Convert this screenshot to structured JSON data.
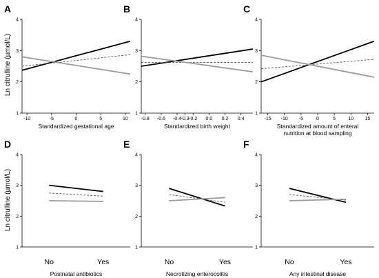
{
  "figure": {
    "ylabel": "Ln citrulline (µmol/L)",
    "series_colors": {
      "black": "#000000",
      "dashed": "#555555",
      "gray": "#999999"
    }
  },
  "chart_data": [
    {
      "panel": "A",
      "type": "line",
      "xlabel": "Standardized gestational age",
      "xlim": [
        -11,
        11
      ],
      "ylim": [
        1,
        4
      ],
      "xticks": [
        "-10",
        "-5",
        "0",
        "5",
        "10"
      ],
      "xtick_values": [
        -10,
        -5,
        0,
        5,
        10
      ],
      "yticks": [
        "1",
        "2",
        "3",
        "4"
      ],
      "ytick_values": [
        1,
        2,
        3,
        4
      ],
      "series": [
        {
          "style": "black",
          "x": [
            -11,
            11
          ],
          "y": [
            2.37,
            3.3
          ]
        },
        {
          "style": "dashed",
          "x": [
            -11,
            11
          ],
          "y": [
            2.5,
            2.87
          ]
        },
        {
          "style": "gray",
          "x": [
            -11,
            11
          ],
          "y": [
            2.8,
            2.25
          ]
        }
      ]
    },
    {
      "panel": "B",
      "type": "line",
      "xlabel": "Standardized birth weight",
      "xlim": [
        -0.85,
        0.55
      ],
      "ylim": [
        1,
        4
      ],
      "xticks": [
        "-0.8",
        "-0.6",
        "-0.4",
        "-0.3",
        "-0.2",
        "0.0",
        "0.2",
        "0.4"
      ],
      "xtick_values": [
        -0.8,
        -0.6,
        -0.4,
        -0.3,
        -0.2,
        0.0,
        0.2,
        0.4
      ],
      "yticks": [
        "1",
        "2",
        "3",
        "4"
      ],
      "ytick_values": [
        1,
        2,
        3,
        4
      ],
      "series": [
        {
          "style": "black",
          "x": [
            -0.85,
            0.55
          ],
          "y": [
            2.5,
            3.05
          ]
        },
        {
          "style": "dashed",
          "x": [
            -0.85,
            0.55
          ],
          "y": [
            2.62,
            2.62
          ]
        },
        {
          "style": "gray",
          "x": [
            -0.85,
            0.55
          ],
          "y": [
            2.82,
            2.32
          ]
        }
      ]
    },
    {
      "panel": "C",
      "type": "line",
      "xlabel_lines": [
        "Standardized amount of enteral",
        "nutrition at blood sampling"
      ],
      "xlim": [
        -17,
        17
      ],
      "ylim": [
        1,
        4
      ],
      "xticks": [
        "-15",
        "-10",
        "-5",
        "0",
        "5",
        "10",
        "15"
      ],
      "xtick_values": [
        -15,
        -10,
        -5,
        0,
        5,
        10,
        15
      ],
      "yticks": [
        "1",
        "2",
        "3",
        "4"
      ],
      "ytick_values": [
        1,
        2,
        3,
        4
      ],
      "series": [
        {
          "style": "black",
          "x": [
            -17,
            17
          ],
          "y": [
            2.0,
            3.3
          ]
        },
        {
          "style": "dashed",
          "x": [
            -17,
            17
          ],
          "y": [
            2.42,
            2.72
          ]
        },
        {
          "style": "gray",
          "x": [
            -17,
            17
          ],
          "y": [
            2.85,
            2.15
          ]
        }
      ]
    },
    {
      "panel": "D",
      "type": "line",
      "xlabel": "Postnatal antibiotics",
      "categories": [
        "No",
        "Yes"
      ],
      "ylim": [
        1,
        4
      ],
      "yticks": [
        "1",
        "2",
        "3",
        "4"
      ],
      "ytick_values": [
        1,
        2,
        3,
        4
      ],
      "series": [
        {
          "style": "black",
          "values": [
            3.0,
            2.8
          ]
        },
        {
          "style": "dashed",
          "values": [
            2.75,
            2.65
          ]
        },
        {
          "style": "gray",
          "values": [
            2.5,
            2.48
          ]
        }
      ]
    },
    {
      "panel": "E",
      "type": "line",
      "xlabel": "Necrotizing enterocolitis",
      "categories": [
        "No",
        "Yes"
      ],
      "ylim": [
        1,
        4
      ],
      "yticks": [
        "1",
        "2",
        "3",
        "4"
      ],
      "ytick_values": [
        1,
        2,
        3,
        4
      ],
      "series": [
        {
          "style": "black",
          "values": [
            2.9,
            2.33
          ]
        },
        {
          "style": "dashed",
          "values": [
            2.7,
            2.45
          ]
        },
        {
          "style": "gray",
          "values": [
            2.5,
            2.6
          ]
        }
      ]
    },
    {
      "panel": "F",
      "type": "line",
      "xlabel": "Any intestinal disease",
      "categories": [
        "No",
        "Yes"
      ],
      "ylim": [
        1,
        4
      ],
      "yticks": [
        "1",
        "2",
        "3",
        "4"
      ],
      "ytick_values": [
        1,
        2,
        3,
        4
      ],
      "series": [
        {
          "style": "black",
          "values": [
            2.9,
            2.45
          ]
        },
        {
          "style": "dashed",
          "values": [
            2.7,
            2.52
          ]
        },
        {
          "style": "gray",
          "values": [
            2.5,
            2.55
          ]
        }
      ]
    }
  ]
}
